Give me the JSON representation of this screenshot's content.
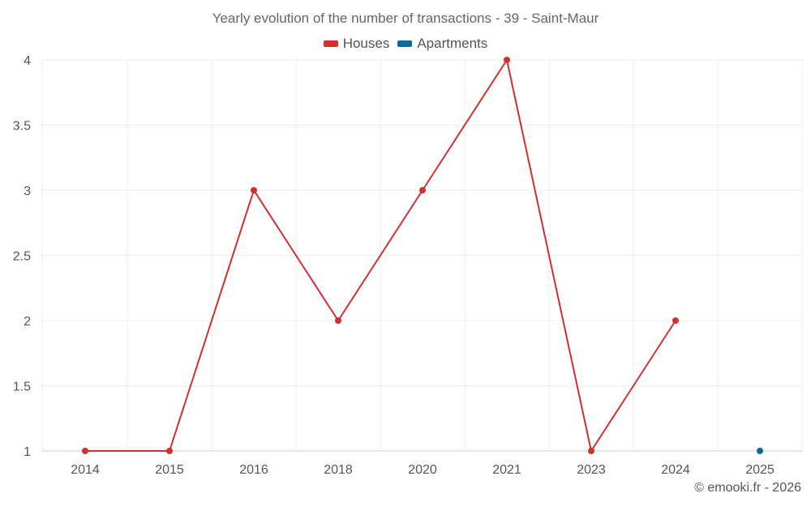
{
  "chart_data": {
    "type": "line",
    "title": "Yearly evolution of the number of transactions - 39 - Saint-Maur",
    "categories": [
      "2014",
      "2015",
      "2016",
      "2018",
      "2020",
      "2021",
      "2023",
      "2024",
      "2025"
    ],
    "yticks": [
      "1",
      "1.5",
      "2",
      "2.5",
      "3",
      "3.5",
      "4"
    ],
    "ylim": [
      1,
      4
    ],
    "grid": true,
    "legend_position": "top",
    "series": [
      {
        "name": "Houses",
        "color": "#d32f2f",
        "values": [
          1,
          1,
          3,
          2,
          3,
          4,
          1,
          2,
          null
        ]
      },
      {
        "name": "Apartments",
        "color": "#0a6a9e",
        "values": [
          null,
          null,
          null,
          null,
          null,
          null,
          null,
          null,
          1
        ]
      }
    ]
  },
  "credit": "© emooki.fr - 2026"
}
